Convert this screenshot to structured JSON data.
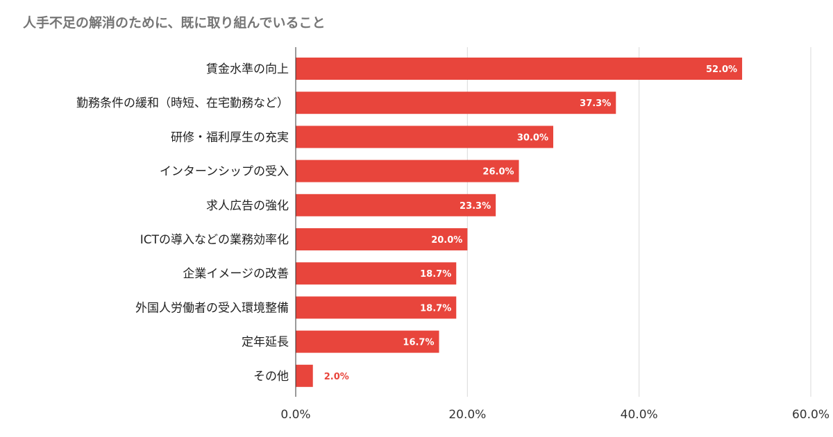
{
  "chart_data": {
    "type": "bar",
    "orientation": "horizontal",
    "title": "人手不足の解消のために、既に取り組んでいること",
    "categories": [
      "賃金水準の向上",
      "勤務条件の緩和（時短、在宅勤務など）",
      "研修・福利厚生の充実",
      "インターンシップの受入",
      "求人広告の強化",
      "ICTの導入などの業務効率化",
      "企業イメージの改善",
      "外国人労働者の受入環境整備",
      "定年延長",
      "その他"
    ],
    "values": [
      52.0,
      37.3,
      30.0,
      26.0,
      23.3,
      20.0,
      18.7,
      18.7,
      16.7,
      2.0
    ],
    "data_labels": [
      "52.0%",
      "37.3%",
      "30.0%",
      "26.0%",
      "23.3%",
      "20.0%",
      "18.7%",
      "18.7%",
      "16.7%",
      "2.0%"
    ],
    "x_ticks": [
      "0.0%",
      "20.0%",
      "40.0%",
      "60.0%"
    ],
    "xlim": [
      0,
      60
    ],
    "grid": true,
    "bar_color": "#e8453c",
    "legend": "none"
  }
}
